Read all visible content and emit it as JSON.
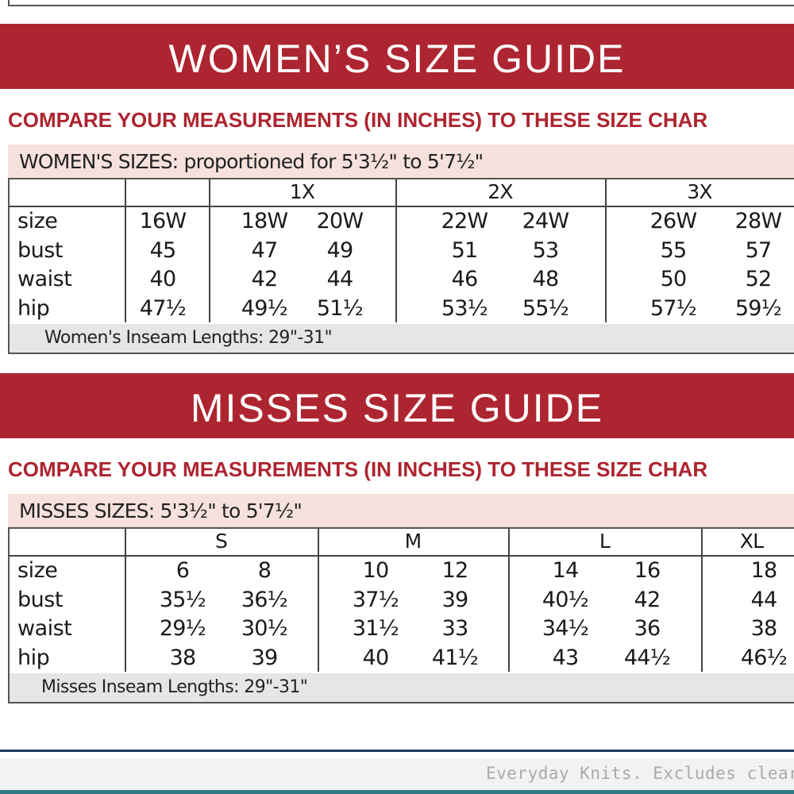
{
  "sections": [
    {
      "title": "WOMEN’S SIZE GUIDE",
      "subtitle": "COMPARE YOUR MEASUREMENTS (IN INCHES) TO THESE SIZE CHAR",
      "table": {
        "caption": "WOMEN'S SIZES: proportioned for 5'3½\" to 5'7½\"",
        "groups": [
          "1X",
          "2X",
          "3X"
        ],
        "rows": [
          {
            "label": "size",
            "values": [
              "16W",
              "18W",
              "20W",
              "22W",
              "24W",
              "26W",
              "28W"
            ]
          },
          {
            "label": "bust",
            "values": [
              "45",
              "47",
              "49",
              "51",
              "53",
              "55",
              "57"
            ]
          },
          {
            "label": "waist",
            "values": [
              "40",
              "42",
              "44",
              "46",
              "48",
              "50",
              "52"
            ]
          },
          {
            "label": "hip",
            "values": [
              "47½",
              "49½",
              "51½",
              "53½",
              "55½",
              "57½",
              "59½"
            ]
          }
        ],
        "footer": "Women's Inseam Lengths: 29\"-31\""
      }
    },
    {
      "title": "MISSES SIZE GUIDE",
      "subtitle": "COMPARE YOUR MEASUREMENTS (IN INCHES) TO THESE SIZE CHAR",
      "table": {
        "caption": "MISSES SIZES: 5'3½\" to 5'7½\"",
        "groups": [
          "S",
          "M",
          "L",
          "XL"
        ],
        "rows": [
          {
            "label": "size",
            "values": [
              "6",
              "8",
              "10",
              "12",
              "14",
              "16",
              "18"
            ]
          },
          {
            "label": "bust",
            "values": [
              "35½",
              "36½",
              "37½",
              "39",
              "40½",
              "42",
              "44"
            ]
          },
          {
            "label": "waist",
            "values": [
              "29½",
              "30½",
              "31½",
              "33",
              "34½",
              "36",
              "38"
            ]
          },
          {
            "label": "hip",
            "values": [
              "38",
              "39",
              "40",
              "41½",
              "43",
              "44½",
              "46½"
            ]
          }
        ],
        "footer": "Misses Inseam Lengths: 29\"-31\""
      }
    }
  ],
  "footer_note": "Everyday Knits. Excludes clearanc"
}
